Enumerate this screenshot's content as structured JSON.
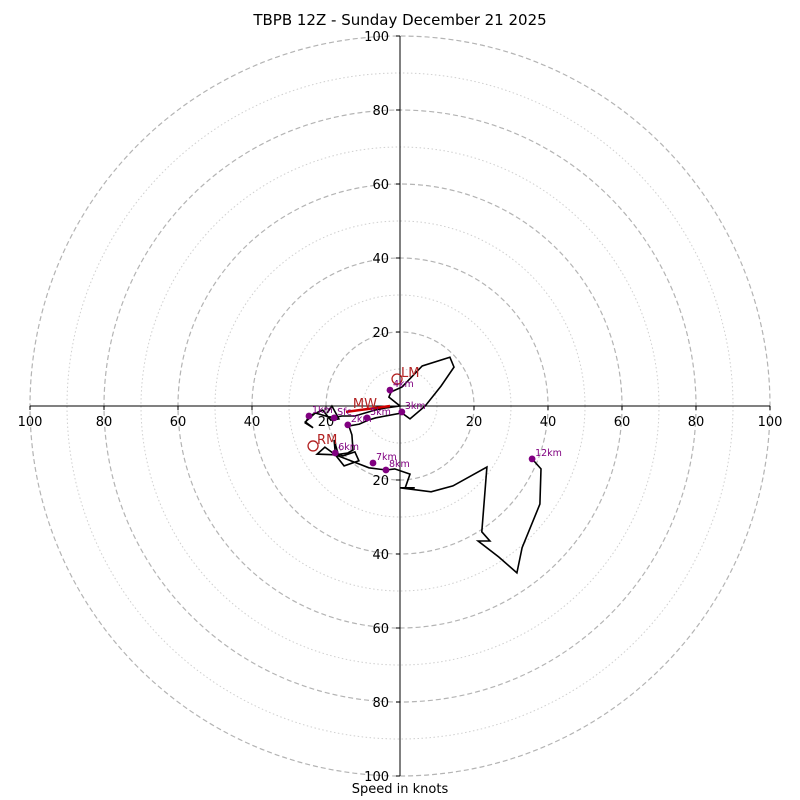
{
  "chart_data": {
    "type": "hodograph",
    "title": "TBPB 12Z - Sunday December 21 2025",
    "xlabel": "Speed in knots",
    "range": [
      -100,
      100
    ],
    "ring_major": [
      20,
      40,
      60,
      80,
      100
    ],
    "ring_minor": [
      10,
      30,
      50,
      70,
      90
    ],
    "x_tick_labels": [
      "100",
      "80",
      "60",
      "40",
      "20",
      "20",
      "40",
      "60",
      "80",
      "100"
    ],
    "x_tick_values": [
      -100,
      -80,
      -60,
      -40,
      -20,
      20,
      40,
      60,
      80,
      100
    ],
    "y_tick_labels": [
      "100",
      "80",
      "60",
      "40",
      "20",
      "20",
      "40",
      "60",
      "80",
      "100"
    ],
    "y_tick_values": [
      100,
      80,
      60,
      40,
      20,
      -20,
      -40,
      -60,
      -80,
      -100
    ],
    "trace": [
      [
        -19.7,
        -1.9
      ],
      [
        -18.4,
        0
      ],
      [
        -16.5,
        -3.5
      ],
      [
        -18.7,
        -3.8
      ],
      [
        -20.9,
        -1.1
      ],
      [
        -24.6,
        -2.7
      ],
      [
        -25.6,
        -4.6
      ],
      [
        -23.5,
        -5.9
      ],
      [
        -25.6,
        -4.3
      ],
      [
        -22.9,
        -1.9
      ],
      [
        -18.4,
        -3.2
      ],
      [
        -15.7,
        -2.7
      ],
      [
        -12.2,
        -2.7
      ],
      [
        -6.8,
        -1.1
      ],
      [
        -3.8,
        -0.5
      ],
      [
        0,
        0
      ],
      [
        -3,
        2.4
      ],
      [
        -2.4,
        3.8
      ],
      [
        0.5,
        5.1
      ],
      [
        6,
        10.8
      ],
      [
        13.5,
        13.2
      ],
      [
        14.6,
        10.5
      ],
      [
        11.1,
        5.4
      ],
      [
        6.8,
        0
      ],
      [
        2.7,
        -3.5
      ],
      [
        0.5,
        -1.9
      ],
      [
        -6.5,
        -3.2
      ],
      [
        -8.6,
        -3.8
      ],
      [
        -11,
        -4.9
      ],
      [
        -13.8,
        -5.4
      ],
      [
        -13,
        -7.8
      ],
      [
        -12.7,
        -11.9
      ],
      [
        -14.1,
        -12.7
      ],
      [
        -17.5,
        -13.2
      ],
      [
        -22.4,
        -13
      ],
      [
        -20.3,
        -11.1
      ],
      [
        -17.5,
        -13.2
      ],
      [
        -16.2,
        -13.2
      ],
      [
        -17.5,
        -12.7
      ],
      [
        -17.8,
        -9.2
      ],
      [
        -16.7,
        -13
      ],
      [
        -15.4,
        -13.5
      ],
      [
        -12.2,
        -12.4
      ],
      [
        -11.1,
        -14.8
      ],
      [
        -15.1,
        -16.2
      ],
      [
        -17.5,
        -13.2
      ],
      [
        -10.5,
        -15.9
      ],
      [
        -8.4,
        -16.7
      ],
      [
        -3.8,
        -17.3
      ],
      [
        -1.4,
        -17
      ],
      [
        2.7,
        -18.4
      ],
      [
        1.4,
        -22.1
      ],
      [
        4,
        -22.1
      ],
      [
        0,
        -22.1
      ],
      [
        8.4,
        -23.2
      ],
      [
        14.3,
        -21.6
      ],
      [
        23.5,
        -16.5
      ],
      [
        22.1,
        -34
      ],
      [
        24.3,
        -36.5
      ],
      [
        21.1,
        -36.5
      ],
      [
        26.7,
        -40.8
      ],
      [
        31.6,
        -45.1
      ],
      [
        33,
        -38.3
      ],
      [
        37.8,
        -26.5
      ],
      [
        38.1,
        -17
      ],
      [
        35.7,
        -14.3
      ]
    ],
    "height_markers": [
      {
        "label": "Sfc",
        "u": -17.8,
        "v": -3.2
      },
      {
        "label": "1km",
        "u": -24.6,
        "v": -2.7
      },
      {
        "label": "2km",
        "u": -14.1,
        "v": -5.1
      },
      {
        "label": "3km",
        "u": 0.5,
        "v": -1.6
      },
      {
        "label": "4km",
        "u": -2.7,
        "v": 4.3
      },
      {
        "label": "5km",
        "u": -8.9,
        "v": -3.2
      },
      {
        "label": "6km",
        "u": -17.5,
        "v": -12.7
      },
      {
        "label": "7km",
        "u": -7.3,
        "v": -15.4
      },
      {
        "label": "8km",
        "u": -3.8,
        "v": -17.3
      },
      {
        "label": "12km",
        "u": 35.7,
        "v": -14.3
      }
    ],
    "storm_motion": [
      {
        "label": "LM",
        "u": -0.8,
        "v": 7.3
      },
      {
        "label": "RM",
        "u": -23.5,
        "v": -10.8
      }
    ],
    "mean_wind": {
      "label": "MW",
      "u": -12.2,
      "v": 0
    },
    "shear_vector": {
      "from": [
        -14.6,
        -1.6
      ],
      "to": [
        -2.7,
        0
      ]
    },
    "colors": {
      "trace": "#000000",
      "markers": "#800080",
      "storm_motion": "#b22222",
      "shear": "#cc0000",
      "grid": "#b4b4b4"
    }
  }
}
